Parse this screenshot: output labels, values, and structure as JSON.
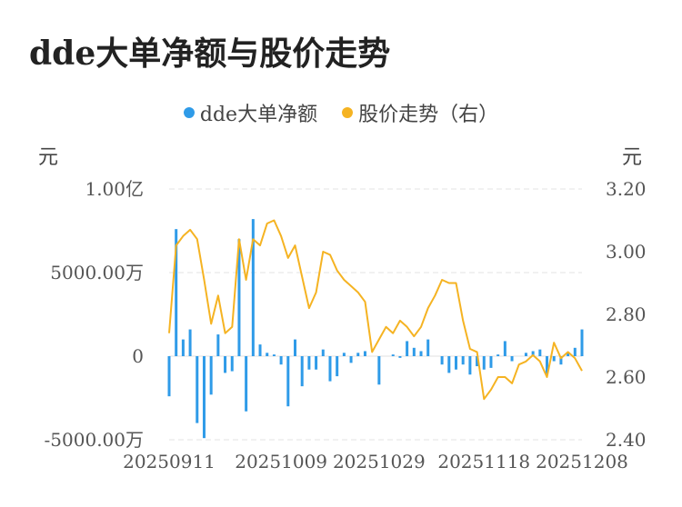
{
  "title": "dde大单净额与股价走势",
  "legend": [
    {
      "label": "dde大单净额",
      "color": "#2f9be8"
    },
    {
      "label": "股价走势（右）",
      "color": "#f5b322"
    }
  ],
  "units": {
    "left": "元",
    "right": "元"
  },
  "chart_data": {
    "type": "bar+line",
    "title": "dde大单净额与股价走势",
    "left_axis": {
      "ticks": [
        "1.00亿",
        "5000.00万",
        "0",
        "-5000.00万"
      ],
      "tick_values": [
        10000,
        5000,
        0,
        -5000
      ],
      "range": [
        -5000,
        10000
      ],
      "unit": "万元"
    },
    "right_axis": {
      "ticks": [
        "3.20",
        "3.00",
        "2.80",
        "2.60",
        "2.40"
      ],
      "tick_values": [
        3.2,
        3.0,
        2.8,
        2.6,
        2.4
      ],
      "range": [
        2.4,
        3.2
      ]
    },
    "x_tick_labels": [
      "20250911",
      "20251009",
      "20251029",
      "20251118",
      "20251208"
    ],
    "x_tick_indices": [
      0,
      17,
      32,
      47,
      62
    ],
    "grid": true,
    "legend_position": "top-center",
    "series": [
      {
        "name": "dde大单净额",
        "type": "bar",
        "color": "#2f9be8",
        "values": [
          -2400,
          7600,
          1000,
          1600,
          -4000,
          -4900,
          -2300,
          1300,
          -1000,
          -900,
          7000,
          -3300,
          8200,
          700,
          200,
          100,
          -500,
          -3000,
          1000,
          -1800,
          -800,
          -800,
          400,
          -1500,
          -1200,
          200,
          -400,
          200,
          300,
          0,
          -1700,
          0,
          100,
          -100,
          900,
          500,
          300,
          1000,
          0,
          -500,
          -1000,
          -800,
          -500,
          -1100,
          -600,
          -800,
          -700,
          100,
          900,
          -300,
          0,
          200,
          300,
          400,
          -1100,
          -300,
          -500,
          200,
          500,
          1600
        ]
      },
      {
        "name": "股价走势（右）",
        "type": "line",
        "color": "#f5b322",
        "values": [
          2.74,
          3.02,
          3.05,
          3.07,
          3.04,
          2.91,
          2.77,
          2.86,
          2.74,
          2.76,
          3.04,
          2.91,
          3.04,
          3.02,
          3.09,
          3.1,
          3.05,
          2.98,
          3.02,
          2.92,
          2.82,
          2.87,
          3.0,
          2.99,
          2.94,
          2.91,
          2.89,
          2.87,
          2.84,
          2.68,
          2.72,
          2.76,
          2.74,
          2.78,
          2.76,
          2.73,
          2.76,
          2.82,
          2.86,
          2.91,
          2.9,
          2.9,
          2.78,
          2.69,
          2.68,
          2.53,
          2.56,
          2.6,
          2.6,
          2.58,
          2.64,
          2.65,
          2.67,
          2.65,
          2.6,
          2.71,
          2.66,
          2.68,
          2.66,
          2.62
        ]
      }
    ]
  }
}
